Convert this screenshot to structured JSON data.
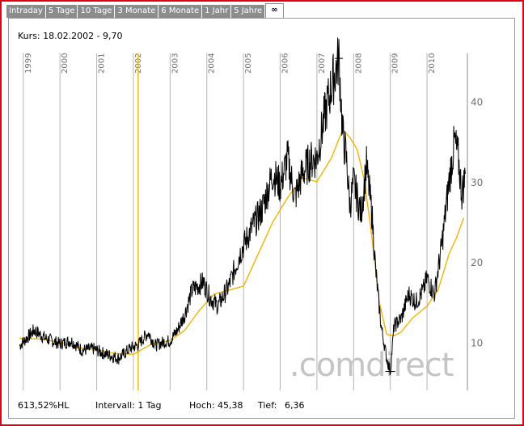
{
  "tabs": [
    "Intraday",
    "5 Tage",
    "10 Tage",
    "3 Monate",
    "6 Monate",
    "1 Jahr",
    "5 Jahre",
    "∞"
  ],
  "active_tab": "∞",
  "kurs_label": "Kurs: 18.02.2002 - 9,70",
  "watermark": ".comdirect",
  "footer": {
    "change": "613,52%HL",
    "interval": "Intervall: 1 Tag",
    "high_label": "Hoch:",
    "high_value": "45,38",
    "low_label": "Tief:",
    "low_value": "6,36"
  },
  "colors": {
    "frame": "#e0000f",
    "tab_bg": "#8c8c8c",
    "grid": "#b4b4b4",
    "price": "#000000",
    "average": "#f0b400",
    "cursor": "#f0c000"
  },
  "chart_data": {
    "type": "line",
    "x_tick_labels": [
      "1999",
      "2000",
      "2001",
      "2002",
      "2003",
      "2004",
      "2005",
      "2006",
      "2007",
      "2008",
      "2009",
      "2010"
    ],
    "y_tick_labels": [
      "10",
      "20",
      "30",
      "40"
    ],
    "ylim": [
      4,
      46
    ],
    "cursor_x": 2002.13,
    "series": [
      {
        "x": [
          1998.9,
          1999.3,
          1999.6,
          2000.0,
          2000.3,
          2000.6,
          2000.9,
          2001.2,
          2001.6,
          2001.9,
          2002.13,
          2002.4,
          2002.6,
          2002.8,
          2003.0,
          2003.2,
          2003.4,
          2003.6,
          2003.9,
          2004.1,
          2004.3,
          2004.6,
          2004.9,
          2005.2,
          2005.5,
          2005.8,
          2006.0,
          2006.2,
          2006.4,
          2006.6,
          2006.8,
          2007.0,
          2007.2,
          2007.4,
          2007.6,
          2007.7,
          2007.8,
          2007.9,
          2008.0,
          2008.2,
          2008.35,
          2008.5,
          2008.6,
          2008.75,
          2008.9,
          2009.0,
          2009.1,
          2009.3,
          2009.5,
          2009.7,
          2009.9,
          2010.0,
          2010.2,
          2010.4,
          2010.6,
          2010.75,
          2010.85,
          2010.95,
          2011.05
        ],
        "y": [
          9.6,
          11.5,
          10.5,
          9.8,
          10.2,
          9.0,
          9.2,
          8.6,
          8.0,
          9.2,
          9.7,
          11.2,
          9.6,
          10.0,
          10.2,
          11.5,
          13.5,
          16.5,
          17.5,
          15.5,
          14.5,
          17.0,
          21.0,
          24.0,
          26.5,
          31.0,
          29.5,
          33.0,
          28.0,
          31.0,
          32.5,
          33.0,
          38.0,
          42.0,
          45.38,
          36.0,
          33.0,
          27.0,
          30.0,
          26.0,
          32.0,
          26.0,
          19.0,
          12.0,
          8.0,
          6.36,
          12.0,
          13.0,
          16.0,
          15.0,
          16.5,
          18.0,
          16.0,
          22.0,
          30.0,
          35.0,
          33.0,
          28.5,
          31.0
        ],
        "color": "#000000"
      },
      {
        "x": [
          1998.9,
          1999.5,
          2000.0,
          2000.5,
          2001.0,
          2001.5,
          2002.0,
          2002.5,
          2003.0,
          2003.4,
          2003.8,
          2004.2,
          2004.6,
          2005.0,
          2005.4,
          2005.8,
          2006.2,
          2006.6,
          2007.0,
          2007.4,
          2007.7,
          2007.9,
          2008.1,
          2008.3,
          2008.5,
          2008.7,
          2008.9,
          2009.1,
          2009.3,
          2009.6,
          2010.0,
          2010.3,
          2010.6,
          2010.8,
          2011.0
        ],
        "y": [
          10.5,
          10.4,
          10.0,
          9.3,
          9.1,
          8.6,
          8.5,
          9.8,
          10.2,
          11.5,
          14.0,
          16.0,
          16.5,
          17.0,
          21.0,
          25.0,
          28.0,
          30.5,
          30.0,
          33.0,
          36.5,
          35.5,
          34.0,
          30.0,
          23.0,
          15.0,
          11.0,
          10.8,
          11.3,
          13.0,
          14.5,
          16.5,
          21.0,
          23.0,
          25.5
        ],
        "color": "#f0b400"
      }
    ]
  }
}
